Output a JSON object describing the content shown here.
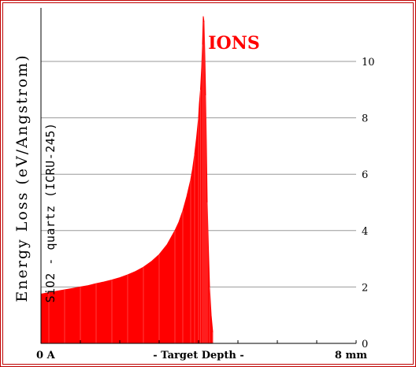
{
  "chart_data": {
    "type": "area",
    "title": "IONS",
    "ylabel": "Energy Loss (eV/Angstrom)",
    "annotation": "SiO2 - quartz (ICRU-245)",
    "xlabel": "- Target Depth -",
    "x_start_label": "0 A",
    "x_end_label": "8 mm",
    "xlim": [
      0,
      8
    ],
    "ylim": [
      0,
      12
    ],
    "ytick_labels": [
      "0",
      "2",
      "4",
      "6",
      "8",
      "10"
    ],
    "yticks": [
      0,
      2,
      4,
      6,
      8,
      10
    ],
    "grid": true,
    "series": [
      {
        "x": [
          0.0,
          0.2,
          0.4,
          0.6,
          0.8,
          1.0,
          1.2,
          1.4,
          1.6,
          1.8,
          2.0,
          2.2,
          2.4,
          2.6,
          2.8,
          3.0,
          3.2,
          3.4,
          3.5,
          3.6,
          3.7,
          3.8,
          3.85,
          3.9,
          3.95,
          4.0,
          4.02,
          4.05,
          4.08,
          4.1,
          4.12,
          4.14,
          4.16,
          4.18,
          4.2,
          4.22,
          4.25,
          4.28,
          4.32,
          4.36
        ],
        "y": [
          1.75,
          1.8,
          1.85,
          1.9,
          1.95,
          2.0,
          2.05,
          2.12,
          2.18,
          2.25,
          2.33,
          2.43,
          2.55,
          2.7,
          2.9,
          3.15,
          3.5,
          4.0,
          4.3,
          4.7,
          5.2,
          5.8,
          6.2,
          6.7,
          7.3,
          8.0,
          8.5,
          9.0,
          9.8,
          10.6,
          11.6,
          11.4,
          10.2,
          8.8,
          7.0,
          5.0,
          3.4,
          2.0,
          1.0,
          0.4
        ]
      }
    ],
    "colors": {
      "fill": "#ff0000",
      "title": "#ff0000",
      "border": "#c00000",
      "grid": "#999999"
    }
  }
}
